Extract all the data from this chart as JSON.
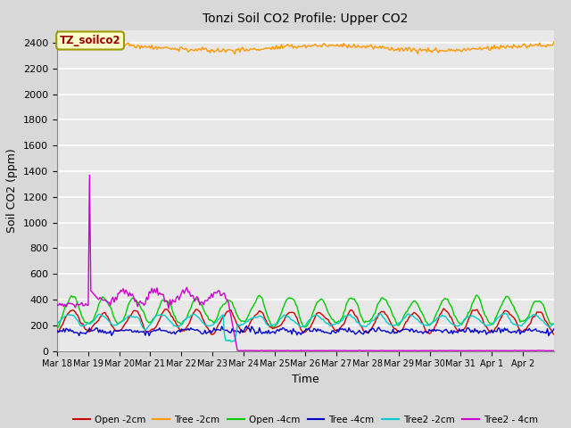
{
  "title": "Tonzi Soil CO2 Profile: Upper CO2",
  "xlabel": "Time",
  "ylabel": "Soil CO2 (ppm)",
  "ylim": [
    0,
    2500
  ],
  "yticks": [
    0,
    200,
    400,
    600,
    800,
    1000,
    1200,
    1400,
    1600,
    1800,
    2000,
    2200,
    2400
  ],
  "background_color": "#d8d8d8",
  "plot_bg_color": "#e8e8e8",
  "grid_color": "#ffffff",
  "annotation_label": "TZ_soilco2",
  "annotation_color": "#990000",
  "annotation_bg": "#ffffcc",
  "annotation_border": "#999900",
  "legend_entries": [
    "Open -2cm",
    "Tree -2cm",
    "Open -4cm",
    "Tree -4cm",
    "Tree2 -2cm",
    "Tree2 - 4cm"
  ],
  "legend_colors": [
    "#cc0000",
    "#ff9900",
    "#00cc00",
    "#0000cc",
    "#00cccc",
    "#cc00cc"
  ],
  "series_colors": {
    "open_2cm": "#cc0000",
    "tree_2cm": "#ff9900",
    "open_4cm": "#00cc00",
    "tree_4cm": "#0000cc",
    "tree2_2cm": "#00cccc",
    "tree2_4cm": "#cc00cc"
  },
  "n_days": 16,
  "x_tick_labels": [
    "Mar 18",
    "Mar 19",
    "Mar 20",
    "Mar 21",
    "Mar 22",
    "Mar 23",
    "Mar 24",
    "Mar 25",
    "Mar 26",
    "Mar 27",
    "Mar 28",
    "Mar 29",
    "Mar 30",
    "Mar 31",
    "Apr 1",
    "Apr 2"
  ],
  "figsize": [
    6.4,
    4.8
  ],
  "dpi": 100
}
